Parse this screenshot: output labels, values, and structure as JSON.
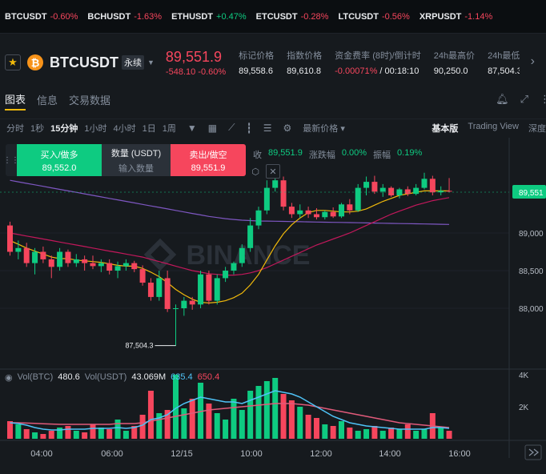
{
  "tickers": [
    {
      "symbol": "BTCUSDT",
      "change": "-0.60%",
      "dir": "neg"
    },
    {
      "symbol": "BCHUSDT",
      "change": "-1.63%",
      "dir": "neg"
    },
    {
      "symbol": "ETHUSDT",
      "change": "+0.47%",
      "dir": "pos"
    },
    {
      "symbol": "ETCUSDT",
      "change": "-0.28%",
      "dir": "neg"
    },
    {
      "symbol": "LTCUSDT",
      "change": "-0.56%",
      "dir": "neg"
    },
    {
      "symbol": "XRPUSDT",
      "change": "-1.14%",
      "dir": "neg"
    }
  ],
  "header": {
    "btc_glyph": "₿",
    "symbol": "BTCUSDT",
    "contract_tag": "永续",
    "last_price": "89,551.9",
    "price_change": "-548.10 -0.60%",
    "stats": [
      {
        "label": "标记价格",
        "value": "89,558.6"
      },
      {
        "label": "指数价格",
        "value": "89,610.8"
      },
      {
        "label": "资金费率 (8时)/倒计时",
        "value_neg": "-0.00071%",
        "value_rest": " / 00:18:10"
      },
      {
        "label": "24h最高价",
        "value": "90,250.0"
      },
      {
        "label": "24h最低",
        "value": "87,504.3"
      }
    ]
  },
  "tabs": [
    "图表",
    "信息",
    "交易数据"
  ],
  "toolbar": {
    "intervals": [
      "分时",
      "1秒",
      "15分钟",
      "1小时",
      "4小时",
      "1日",
      "1周"
    ],
    "active_interval": "15分钟",
    "latest_price": "最新价格",
    "views": [
      "基本版",
      "Trading View",
      "深度"
    ]
  },
  "order_panel": {
    "buy_label": "买入/做多",
    "buy_price": "89,552.0",
    "qty_label": "数量 (USDT)",
    "qty_placeholder": "输入数量",
    "sell_label": "卖出/做空",
    "sell_price": "89,551.9"
  },
  "ohlc": {
    "close_label": "收",
    "close_value": "89,551.9",
    "change_label": "涨跌幅",
    "change_value": "0.00%",
    "amplitude_label": "振幅",
    "amplitude_value": "0.19%"
  },
  "volume_legend": {
    "btc_label": "Vol(BTC)",
    "btc_value": "480.6",
    "usdt_label": "Vol(USDT)",
    "usdt_value": "43.069M",
    "ma1": "635.4",
    "ma2": "650.4"
  },
  "watermark": "BINANCE",
  "colors": {
    "up": "#0ecb81",
    "down": "#f6465d",
    "ma_short": "#f0b90b",
    "ma_long": "#c94dd6",
    "accent": "#f0b90b"
  },
  "chart_data": {
    "type": "candlestick",
    "price_axis_ticks": [
      89000,
      88500,
      88000
    ],
    "price_tick_labels": [
      "89,000",
      "88,500",
      "88,000"
    ],
    "last_price_label": "89,551",
    "low_label": "87,504.3",
    "low_value": 87504.3,
    "time_ticks": [
      "04:00",
      "06:00",
      "12/15",
      "10:00",
      "12:00",
      "14:00",
      "16:00"
    ],
    "volume_axis_labels": [
      "4K",
      "2K"
    ],
    "volume_axis_values": [
      4000,
      2000
    ],
    "candles": [
      {
        "o": 89100,
        "h": 89150,
        "l": 88700,
        "c": 88750
      },
      {
        "o": 88750,
        "h": 88900,
        "l": 88650,
        "c": 88800
      },
      {
        "o": 88800,
        "h": 88870,
        "l": 88550,
        "c": 88600
      },
      {
        "o": 88600,
        "h": 88800,
        "l": 88450,
        "c": 88750
      },
      {
        "o": 88750,
        "h": 88820,
        "l": 88600,
        "c": 88650
      },
      {
        "o": 88650,
        "h": 88700,
        "l": 88400,
        "c": 88550
      },
      {
        "o": 88550,
        "h": 88800,
        "l": 88500,
        "c": 88750
      },
      {
        "o": 88750,
        "h": 88780,
        "l": 88550,
        "c": 88600
      },
      {
        "o": 88600,
        "h": 88720,
        "l": 88550,
        "c": 88650
      },
      {
        "o": 88650,
        "h": 88700,
        "l": 88500,
        "c": 88600
      },
      {
        "o": 88600,
        "h": 88700,
        "l": 88520,
        "c": 88560
      },
      {
        "o": 88560,
        "h": 88650,
        "l": 88480,
        "c": 88600
      },
      {
        "o": 88600,
        "h": 88650,
        "l": 88450,
        "c": 88500
      },
      {
        "o": 88500,
        "h": 88620,
        "l": 88400,
        "c": 88560
      },
      {
        "o": 88560,
        "h": 88650,
        "l": 88500,
        "c": 88600
      },
      {
        "o": 88600,
        "h": 88630,
        "l": 88480,
        "c": 88520
      },
      {
        "o": 88520,
        "h": 88570,
        "l": 88300,
        "c": 88340
      },
      {
        "o": 88340,
        "h": 88400,
        "l": 88100,
        "c": 88150
      },
      {
        "o": 88150,
        "h": 88500,
        "l": 88100,
        "c": 88400
      },
      {
        "o": 88400,
        "h": 88500,
        "l": 87950,
        "c": 87990
      },
      {
        "o": 87990,
        "h": 88050,
        "l": 87500,
        "c": 88000
      },
      {
        "o": 88000,
        "h": 88150,
        "l": 87900,
        "c": 88100
      },
      {
        "o": 88100,
        "h": 88150,
        "l": 87980,
        "c": 88050
      },
      {
        "o": 88050,
        "h": 88500,
        "l": 88000,
        "c": 88450
      },
      {
        "o": 88450,
        "h": 88500,
        "l": 88050,
        "c": 88100
      },
      {
        "o": 88100,
        "h": 88450,
        "l": 88050,
        "c": 88400
      },
      {
        "o": 88400,
        "h": 88550,
        "l": 88350,
        "c": 88500
      },
      {
        "o": 88500,
        "h": 88620,
        "l": 88450,
        "c": 88600
      },
      {
        "o": 88600,
        "h": 88850,
        "l": 88550,
        "c": 88800
      },
      {
        "o": 88800,
        "h": 89200,
        "l": 88750,
        "c": 89100
      },
      {
        "o": 89100,
        "h": 89350,
        "l": 89050,
        "c": 89300
      },
      {
        "o": 89300,
        "h": 89700,
        "l": 89250,
        "c": 89600
      },
      {
        "o": 89600,
        "h": 89900,
        "l": 89550,
        "c": 89700
      },
      {
        "o": 89700,
        "h": 89750,
        "l": 89300,
        "c": 89350
      },
      {
        "o": 89350,
        "h": 89400,
        "l": 89200,
        "c": 89250
      },
      {
        "o": 89250,
        "h": 89380,
        "l": 89200,
        "c": 89300
      },
      {
        "o": 89300,
        "h": 89350,
        "l": 89200,
        "c": 89250
      },
      {
        "o": 89250,
        "h": 89330,
        "l": 89180,
        "c": 89210
      },
      {
        "o": 89210,
        "h": 89300,
        "l": 89180,
        "c": 89280
      },
      {
        "o": 89280,
        "h": 89340,
        "l": 89200,
        "c": 89220
      },
      {
        "o": 89220,
        "h": 89400,
        "l": 89200,
        "c": 89380
      },
      {
        "o": 89380,
        "h": 89450,
        "l": 89250,
        "c": 89300
      },
      {
        "o": 89300,
        "h": 89650,
        "l": 89280,
        "c": 89600
      },
      {
        "o": 89600,
        "h": 89750,
        "l": 89500,
        "c": 89680
      },
      {
        "o": 89680,
        "h": 89760,
        "l": 89520,
        "c": 89550
      },
      {
        "o": 89550,
        "h": 89650,
        "l": 89480,
        "c": 89600
      },
      {
        "o": 89600,
        "h": 89620,
        "l": 89480,
        "c": 89500
      },
      {
        "o": 89500,
        "h": 89600,
        "l": 89460,
        "c": 89580
      },
      {
        "o": 89580,
        "h": 89620,
        "l": 89490,
        "c": 89520
      },
      {
        "o": 89520,
        "h": 89650,
        "l": 89500,
        "c": 89600
      },
      {
        "o": 89600,
        "h": 89800,
        "l": 89580,
        "c": 89720
      },
      {
        "o": 89720,
        "h": 89760,
        "l": 89500,
        "c": 89540
      },
      {
        "o": 89540,
        "h": 89620,
        "l": 89500,
        "c": 89560
      },
      {
        "o": 89560,
        "h": 89730,
        "l": 89540,
        "c": 89552
      }
    ],
    "volumes": [
      1100,
      900,
      600,
      400,
      300,
      500,
      700,
      800,
      500,
      400,
      900,
      700,
      600,
      1200,
      500,
      800,
      1500,
      3000,
      1600,
      1800,
      4000,
      1900,
      2500,
      3500,
      2200,
      1600,
      1200,
      2500,
      1800,
      3000,
      3300,
      3600,
      3800,
      2800,
      2400,
      2000,
      1500,
      1300,
      900,
      800,
      1100,
      700,
      500,
      600,
      800,
      500,
      700,
      600,
      900,
      500,
      600,
      1600,
      700,
      500
    ],
    "ma7": [
      88900,
      88850,
      88800,
      88760,
      88720,
      88680,
      88660,
      88660,
      88640,
      88630,
      88620,
      88610,
      88590,
      88570,
      88560,
      88560,
      88530,
      88480,
      88420,
      88340,
      88250,
      88180,
      88120,
      88080,
      88070,
      88080,
      88100,
      88140,
      88200,
      88310,
      88450,
      88640,
      88830,
      88990,
      89110,
      89200,
      89270,
      89300,
      89300,
      89290,
      89280,
      89280,
      89290,
      89320,
      89370,
      89420,
      89460,
      89500,
      89520,
      89540,
      89560,
      89560,
      89560,
      89560
    ],
    "ma25": [
      89000,
      88980,
      88960,
      88940,
      88920,
      88900,
      88880,
      88860,
      88840,
      88820,
      88800,
      88780,
      88760,
      88740,
      88720,
      88700,
      88680,
      88650,
      88620,
      88590,
      88560,
      88530,
      88500,
      88480,
      88460,
      88450,
      88440,
      88440,
      88450,
      88470,
      88500,
      88540,
      88590,
      88640,
      88690,
      88740,
      88790,
      88840,
      88880,
      88920,
      88960,
      89000,
      89050,
      89100,
      89150,
      89200,
      89250,
      89290,
      89330,
      89370,
      89400,
      89430,
      89450,
      89470
    ],
    "ma99": [
      89700,
      89680,
      89660,
      89640,
      89620,
      89600,
      89580,
      89560,
      89540,
      89520,
      89500,
      89480,
      89460,
      89440,
      89420,
      89400,
      89380,
      89360,
      89340,
      89320,
      89300,
      89280,
      89260,
      89240,
      89220,
      89205,
      89190,
      89180,
      89170,
      89165,
      89160,
      89158,
      89156,
      89154,
      89152,
      89150,
      89148,
      89146,
      89144,
      89142,
      89140,
      89138,
      89136,
      89134,
      89132,
      89130,
      89128,
      89126,
      89124,
      89122,
      89120,
      89118,
      89116,
      89114
    ],
    "vol_ma1": [
      1000,
      950,
      850,
      700,
      600,
      550,
      550,
      600,
      600,
      600,
      650,
      650,
      650,
      700,
      650,
      700,
      850,
      1200,
      1300,
      1500,
      1900,
      2200,
      2400,
      2600,
      2500,
      2400,
      2300,
      2300,
      2200,
      2400,
      2600,
      2800,
      3000,
      2900,
      2800,
      2600,
      2300,
      2000,
      1700,
      1400,
      1200,
      1000,
      900,
      800,
      750,
      700,
      650,
      600,
      600,
      600,
      600,
      700,
      700,
      650
    ],
    "vol_ma2": [
      1000,
      1000,
      980,
      960,
      940,
      920,
      900,
      900,
      900,
      900,
      900,
      900,
      900,
      950,
      950,
      950,
      1000,
      1100,
      1200,
      1300,
      1400,
      1500,
      1600,
      1700,
      1800,
      1850,
      1900,
      1950,
      2000,
      2050,
      2100,
      2150,
      2200,
      2200,
      2200,
      2150,
      2100,
      2000,
      1900,
      1800,
      1700,
      1600,
      1500,
      1400,
      1300,
      1200,
      1100,
      1000,
      950,
      900,
      850,
      800,
      750,
      700
    ]
  }
}
